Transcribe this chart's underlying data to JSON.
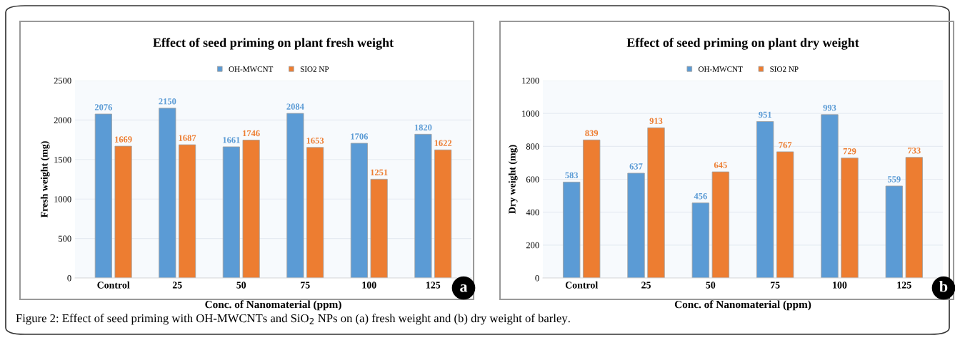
{
  "chart_data": [
    {
      "type": "bar",
      "title": "Effect of seed priming on plant fresh weight",
      "xlabel": "Conc. of Nanomaterial (ppm)",
      "ylabel": "Fresh weight (mg)",
      "categories": [
        "Control",
        "25",
        "50",
        "75",
        "100",
        "125"
      ],
      "series": [
        {
          "name": "OH-MWCNT",
          "color": "#5b9bd5",
          "values": [
            2076,
            2150,
            1661,
            2084,
            1706,
            1820
          ]
        },
        {
          "name": "SIO2 NP",
          "color": "#ed7d31",
          "values": [
            1669,
            1687,
            1746,
            1653,
            1251,
            1622
          ]
        }
      ],
      "ylim": [
        0,
        2500
      ],
      "yticks": [
        0,
        500,
        1000,
        1500,
        2000,
        2500
      ],
      "grid": "y",
      "legend": "top",
      "data_labels": true,
      "annotations": [
        "a",
        "Figure 2: Effect of seed priming with OH-MWCNTs and SiO$_{2}$ NPs on (a) fresh weight and (b) dry weight of barley."
      ]
    },
    {
      "type": "bar",
      "title": "Effect of seed priming on plant dry weight",
      "xlabel": "Conc. of Nanomaterial (ppm)",
      "ylabel": "Dry weight (mg)",
      "categories": [
        "Control",
        "25",
        "50",
        "75",
        "100",
        "125"
      ],
      "series": [
        {
          "name": "OH-MWCNT",
          "color": "#5b9bd5",
          "values": [
            583,
            637,
            456,
            951,
            993,
            559
          ]
        },
        {
          "name": "SIO2 NP",
          "color": "#ed7d31",
          "values": [
            839,
            913,
            645,
            767,
            729,
            733
          ]
        }
      ],
      "ylim": [
        0,
        1200
      ],
      "yticks": [
        0,
        200,
        400,
        600,
        800,
        1000,
        1200
      ],
      "grid": "y",
      "legend": "top",
      "data_labels": true,
      "annotations": [
        "b"
      ]
    }
  ]
}
